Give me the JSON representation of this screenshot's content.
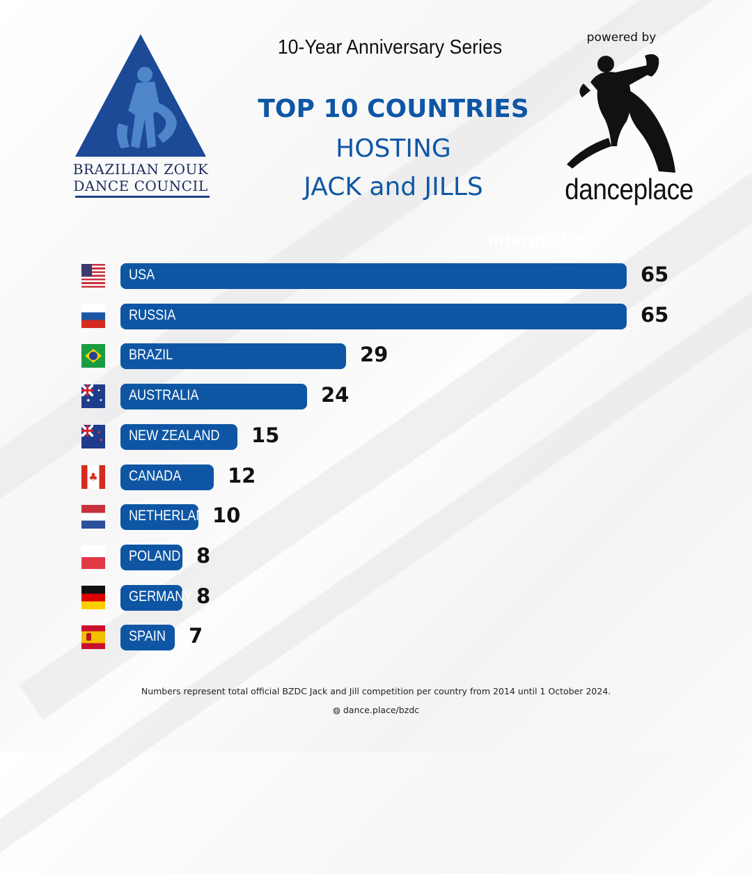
{
  "header": {
    "series_label": "10-Year Anniversary Series",
    "title_line1": "TOP 10 COUNTRIES",
    "title_line2": "HOSTING",
    "title_line3": "JACK and JILLS",
    "ghost_text": "Intermediate"
  },
  "logos": {
    "bzdc_line1": "BRAZILIAN ZOUK",
    "bzdc_line2": "DANCE COUNCIL",
    "powered_by": "powered by",
    "danceplace": "danceplace"
  },
  "colors": {
    "accent": "#0e56a4",
    "logo_triangle": "#1d4a97"
  },
  "chart_data": {
    "type": "bar",
    "orientation": "horizontal",
    "categories": [
      "USA",
      "RUSSIA",
      "BRAZIL",
      "AUSTRALIA",
      "NEW ZEALAND",
      "CANADA",
      "NETHERLANDS",
      "POLAND",
      "GERMANY",
      "SPAIN"
    ],
    "values": [
      65,
      65,
      29,
      24,
      15,
      12,
      10,
      8,
      8,
      7
    ],
    "flags": [
      "flag-usa-icon",
      "flag-russia-icon",
      "flag-brazil-icon",
      "flag-australia-icon",
      "flag-new-zealand-icon",
      "flag-canada-icon",
      "flag-netherlands-icon",
      "flag-poland-icon",
      "flag-germany-icon",
      "flag-spain-icon"
    ],
    "title": "TOP 10 COUNTRIES HOSTING JACK and JILLS",
    "xlabel": "",
    "ylabel": "",
    "grid": false,
    "legend": "none"
  },
  "footer": {
    "note": "Numbers represent total official BZDC Jack and Jill competition per country from 2014 until 1 October 2024.",
    "url": "dance.place/bzdc"
  }
}
